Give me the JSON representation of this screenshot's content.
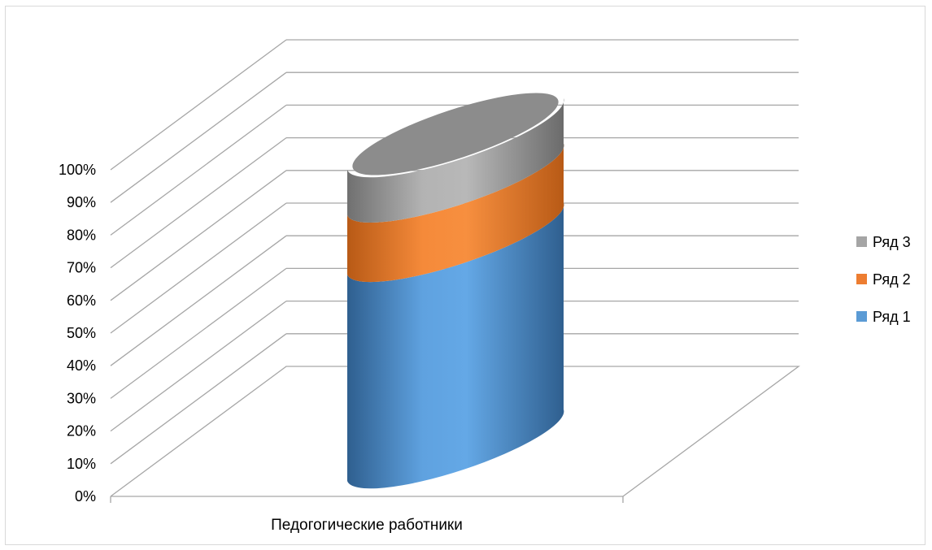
{
  "chart_data": {
    "type": "bar",
    "subtype": "stacked-100-3d-cylinder",
    "categories": [
      "Педогогические работники"
    ],
    "series": [
      {
        "name": "Ряд 1",
        "values": [
          73
        ],
        "color": "#5b9bd5"
      },
      {
        "name": "Ряд 2",
        "values": [
          21
        ],
        "color": "#ed7d31"
      },
      {
        "name": "Ряд 3",
        "values": [
          16
        ],
        "color": "#a5a5a5"
      }
    ],
    "y_ticks": [
      "0%",
      "10%",
      "20%",
      "30%",
      "40%",
      "50%",
      "60%",
      "70%",
      "80%",
      "90%",
      "100%"
    ],
    "ylim": [
      0,
      100
    ],
    "legend_position": "right",
    "grid": true
  }
}
